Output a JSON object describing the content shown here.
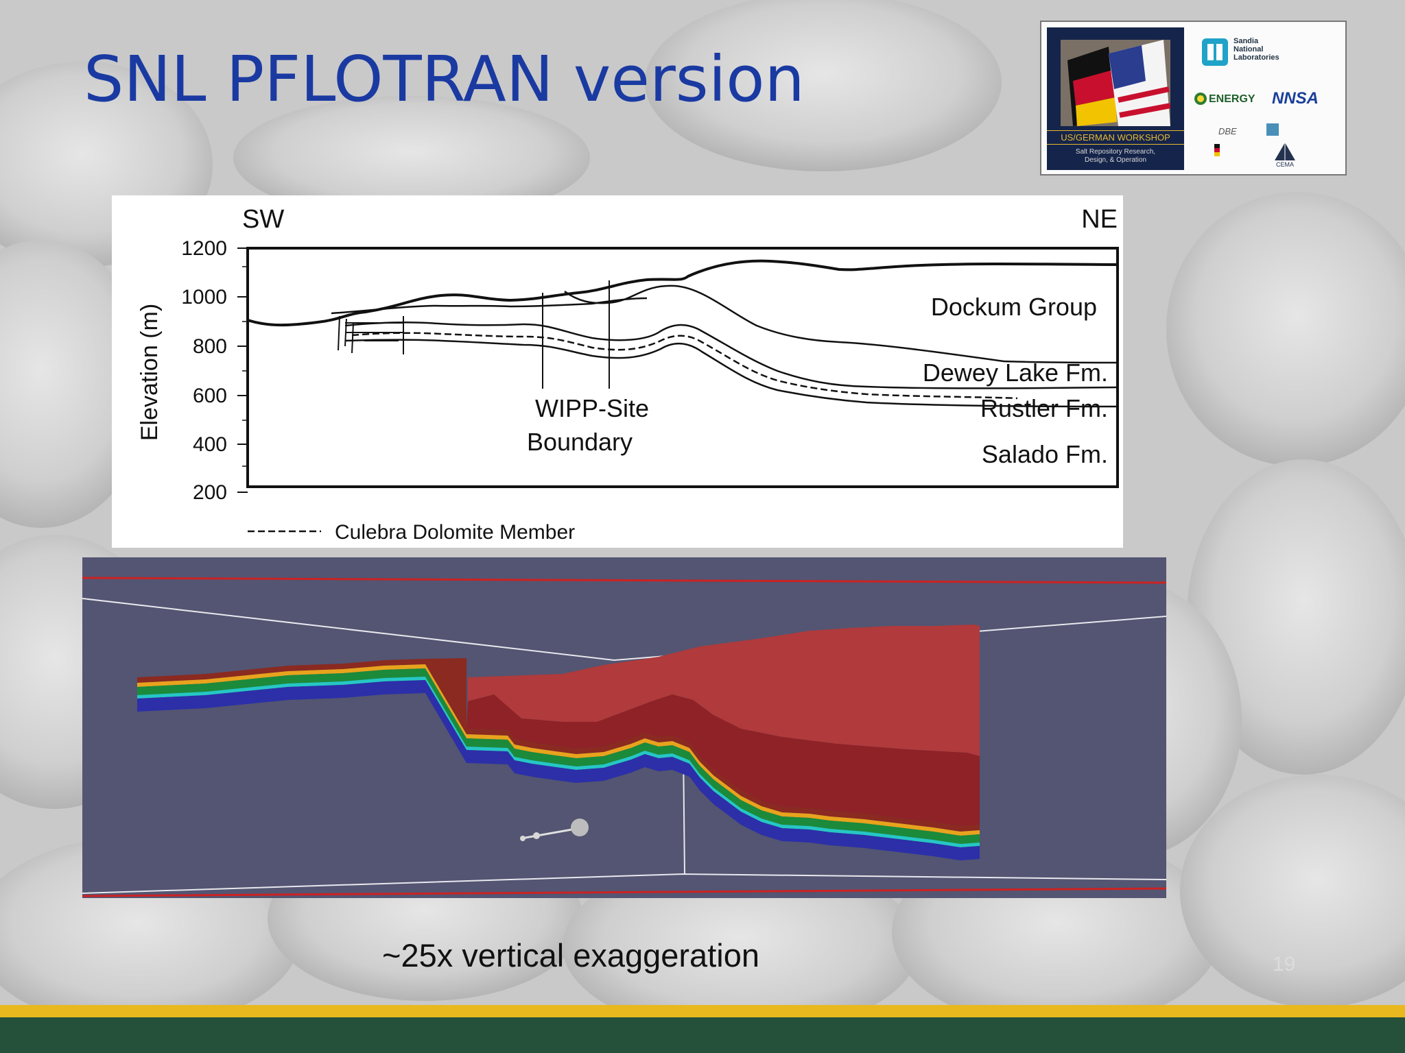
{
  "slide": {
    "title": "SNL PFLOTRAN version",
    "caption": "~25x vertical exaggeration",
    "page_number": "19"
  },
  "logo": {
    "workshop_title": "US/GERMAN WORKSHOP",
    "workshop_subtitle_1": "Salt Repository Research,",
    "workshop_subtitle_2": "Design, & Operation",
    "sandia_1": "Sandia",
    "sandia_2": "National",
    "sandia_3": "Laboratories",
    "energy": "ENERGY",
    "nnsa": "NNSA",
    "dbe": "DBE",
    "cema": "CEMA"
  },
  "cross_section": {
    "dir_left": "SW",
    "dir_right": "NE",
    "y_axis_label": "Elevation (m)",
    "y_ticks": [
      "1200",
      "1000",
      "800",
      "600",
      "400",
      "200"
    ],
    "units": {
      "dockum": "Dockum Group",
      "dewey": "Dewey Lake Fm.",
      "rustler": "Rustler Fm.",
      "salado": "Salado Fm."
    },
    "wipp_label_1": "WIPP-Site",
    "wipp_label_2": "Boundary",
    "legend": "Culebra Dolomite Member"
  },
  "colors": {
    "title_blue": "#1a3aa2",
    "footer_gold": "#e8b81e",
    "footer_green": "#25503a",
    "sim_background": "#535572"
  }
}
